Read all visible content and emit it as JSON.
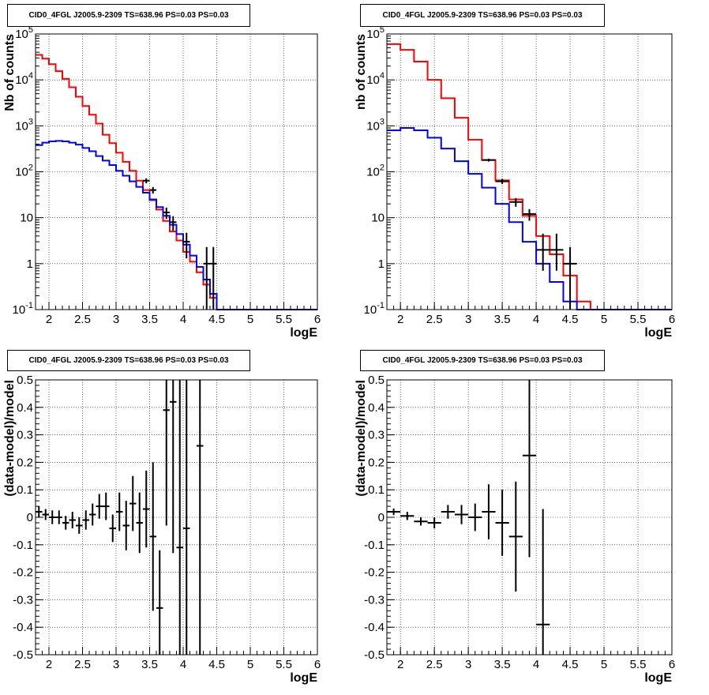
{
  "chart_data": [
    {
      "type": "line",
      "title": "CID0_4FGL J2005.9-2309 TS=638.96 PS=0.03 PS=0.03",
      "xlabel": "logE",
      "ylabel": "Nb of counts",
      "yscale": "log",
      "xlim": [
        1.8,
        6.0
      ],
      "ylim": [
        0.1,
        100000
      ],
      "grid": true,
      "x_ticks": [
        "2",
        "2.5",
        "3",
        "3.5",
        "4",
        "4.5",
        "5",
        "5.5",
        "6"
      ],
      "y_ticks": [
        "10^-1",
        "1",
        "10",
        "10^2",
        "10^3",
        "10^4",
        "10^5"
      ],
      "bin_edges": [
        1.8,
        1.9,
        2.0,
        2.1,
        2.2,
        2.3,
        2.4,
        2.5,
        2.6,
        2.7,
        2.8,
        2.9,
        3.0,
        3.1,
        3.2,
        3.3,
        3.4,
        3.5,
        3.6,
        3.7,
        3.8,
        3.9,
        4.0,
        4.1,
        4.2,
        4.3,
        4.4,
        4.5,
        4.6,
        4.7,
        4.8,
        4.9,
        5.0,
        5.1,
        5.2,
        5.3,
        5.4,
        5.5,
        5.6,
        5.7,
        5.8,
        5.9,
        6.0
      ],
      "series": [
        {
          "color": "#ff0000",
          "style": "step",
          "values": [
            35000,
            29000,
            22000,
            15500,
            10500,
            6900,
            4300,
            2700,
            1750,
            1120,
            640,
            420,
            260,
            165,
            105,
            64,
            40,
            24,
            15,
            8.5,
            5,
            3.2,
            1.8,
            1.1,
            0.65,
            0.35,
            0.18,
            0.1,
            0.1,
            0.1,
            0.1,
            0.1,
            0.1,
            0.1,
            0.1,
            0.1,
            0.1,
            0.1,
            0.1,
            0.1,
            0.1,
            0.1
          ]
        },
        {
          "color": "#0000ff",
          "style": "step",
          "values": [
            380,
            430,
            460,
            470,
            460,
            430,
            390,
            330,
            280,
            220,
            175,
            140,
            105,
            82,
            62,
            47,
            35,
            25,
            17,
            11,
            7,
            4.4,
            2.6,
            1.5,
            0.85,
            0.45,
            0.22,
            0.1,
            0.1,
            0.1,
            0.1,
            0.1,
            0.1,
            0.1,
            0.1,
            0.1,
            0.1,
            0.1,
            0.1,
            0.1,
            0.1,
            0.1
          ]
        }
      ],
      "data_points": {
        "color": "#000000",
        "x": [
          3.45,
          3.55,
          3.75,
          3.85,
          4.05,
          4.35,
          4.45
        ],
        "y": [
          64,
          40,
          13,
          8,
          3,
          1,
          1
        ],
        "yerr_low": [
          8,
          6.5,
          3.6,
          2.8,
          1.7,
          0.9,
          0.9
        ],
        "yerr_high": [
          8,
          6.5,
          3.6,
          2.8,
          1.7,
          1.3,
          1.3
        ]
      }
    },
    {
      "type": "line",
      "title": "CID0_4FGL J2005.9-2309 TS=638.96 PS=0.03 PS=0.03",
      "xlabel": "logE",
      "ylabel": "nb of counts",
      "yscale": "log",
      "xlim": [
        1.8,
        6.0
      ],
      "ylim": [
        0.1,
        100000
      ],
      "grid": true,
      "x_ticks": [
        "2",
        "2.5",
        "3",
        "3.5",
        "4",
        "4.5",
        "5",
        "5.5",
        "6"
      ],
      "y_ticks": [
        "10^-1",
        "1",
        "10",
        "10^2",
        "10^3",
        "10^4",
        "10^5"
      ],
      "bin_edges": [
        1.8,
        2.0,
        2.2,
        2.4,
        2.6,
        2.8,
        3.0,
        3.2,
        3.4,
        3.6,
        3.8,
        4.0,
        4.2,
        4.4,
        4.6,
        4.8,
        5.0,
        5.2,
        5.4,
        5.6,
        5.8,
        6.0
      ],
      "series": [
        {
          "color": "#ff0000",
          "style": "step",
          "values": [
            60000,
            45000,
            25000,
            10000,
            4000,
            1500,
            500,
            180,
            65,
            25,
            11,
            4,
            1.6,
            0.55,
            0.15,
            0.1,
            0.1,
            0.1,
            0.1,
            0.1,
            0.1
          ]
        },
        {
          "color": "#0000ff",
          "style": "step",
          "values": [
            800,
            900,
            800,
            550,
            320,
            170,
            90,
            45,
            20,
            8,
            3,
            1,
            0.4,
            0.15,
            0.1,
            0.1,
            0.1,
            0.1,
            0.1,
            0.1,
            0.1
          ]
        }
      ],
      "data_points": {
        "color": "#000000",
        "x": [
          3.3,
          3.5,
          3.7,
          3.9,
          4.1,
          4.3,
          4.5
        ],
        "y": [
          180,
          62,
          22,
          12,
          2,
          2,
          1
        ],
        "yerr_low": [
          13,
          8,
          4.7,
          3.4,
          1.3,
          1.3,
          0.9
        ],
        "yerr_high": [
          13,
          8,
          4.7,
          3.4,
          2.5,
          2.5,
          1.3
        ]
      }
    },
    {
      "type": "scatter",
      "title": "CID0_4FGL J2005.9-2309 TS=638.96 PS=0.03 PS=0.03",
      "xlabel": "logE",
      "ylabel": "(data-model)/model",
      "xlim": [
        1.8,
        6.0
      ],
      "ylim": [
        -0.5,
        0.5
      ],
      "grid": true,
      "x_ticks": [
        "2",
        "2.5",
        "3",
        "3.5",
        "4",
        "4.5",
        "5",
        "5.5",
        "6"
      ],
      "y_ticks": [
        "-0.5",
        "-0.4",
        "-0.3",
        "-0.2",
        "-0.1",
        "0",
        "0.1",
        "0.2",
        "0.3",
        "0.4",
        "0.5"
      ],
      "x": [
        1.85,
        1.95,
        2.05,
        2.15,
        2.25,
        2.35,
        2.45,
        2.55,
        2.65,
        2.75,
        2.85,
        2.95,
        3.05,
        3.15,
        3.25,
        3.35,
        3.45,
        3.55,
        3.65,
        3.75,
        3.85,
        3.95,
        4.05,
        4.25
      ],
      "y": [
        0.02,
        0.01,
        0.0,
        0.0,
        -0.02,
        -0.01,
        -0.03,
        -0.01,
        0.01,
        0.04,
        0.04,
        -0.04,
        0.02,
        -0.03,
        0.05,
        -0.02,
        0.03,
        -0.07,
        -0.33,
        0.39,
        0.42,
        -0.11,
        -0.04,
        0.26
      ],
      "yerr": [
        0.02,
        0.02,
        0.025,
        0.025,
        0.025,
        0.03,
        0.03,
        0.035,
        0.04,
        0.045,
        0.05,
        0.05,
        0.07,
        0.09,
        0.1,
        0.11,
        0.14,
        0.27,
        0.21,
        0.42,
        0.55,
        0.83,
        0.9,
        1.1
      ],
      "xerr": 0.05
    },
    {
      "type": "scatter",
      "title": "CID0_4FGL J2005.9-2309 TS=638.96 PS=0.03 PS=0.03",
      "xlabel": "logE",
      "ylabel": "(data-model)/model",
      "xlim": [
        1.8,
        6.0
      ],
      "ylim": [
        -0.5,
        0.5
      ],
      "grid": true,
      "x_ticks": [
        "2",
        "2.5",
        "3",
        "3.5",
        "4",
        "4.5",
        "5",
        "5.5",
        "6"
      ],
      "y_ticks": [
        "-0.5",
        "-0.4",
        "-0.3",
        "-0.2",
        "-0.1",
        "0",
        "0.1",
        "0.2",
        "0.3",
        "0.4",
        "0.5"
      ],
      "x": [
        1.9,
        2.1,
        2.3,
        2.5,
        2.7,
        2.9,
        3.1,
        3.3,
        3.5,
        3.7,
        3.9,
        4.1
      ],
      "y": [
        0.02,
        0.005,
        -0.015,
        -0.02,
        0.02,
        0.01,
        0.0,
        0.02,
        -0.02,
        -0.07,
        0.225,
        -0.39
      ],
      "yerr": [
        0.012,
        0.015,
        0.015,
        0.02,
        0.025,
        0.035,
        0.05,
        0.1,
        0.12,
        0.2,
        0.37,
        0.42
      ],
      "xerr": 0.1
    }
  ]
}
